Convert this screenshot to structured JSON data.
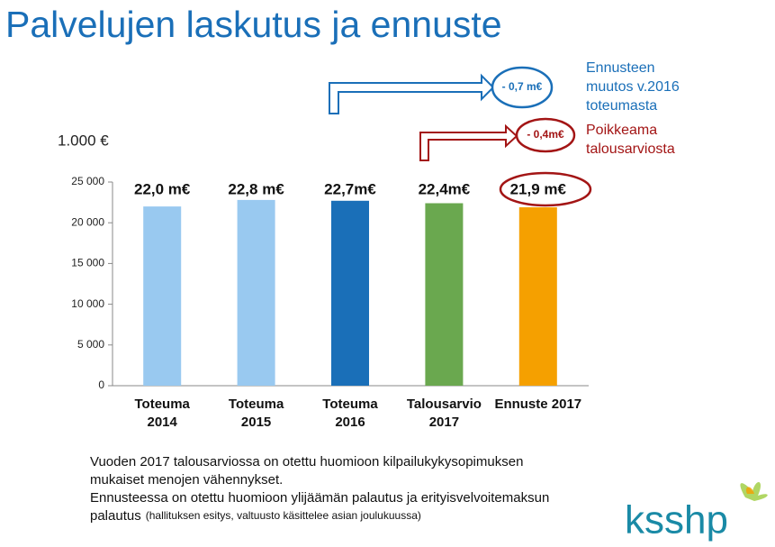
{
  "title": "Palvelujen laskutus ja ennuste",
  "chart_data": {
    "type": "bar",
    "unit_label": "1.000 €",
    "categories": [
      [
        "Toteuma",
        "2014"
      ],
      [
        "Toteuma",
        "2015"
      ],
      [
        "Toteuma",
        "2016"
      ],
      [
        "Talousarvio",
        "2017"
      ],
      [
        "Ennuste 2017"
      ]
    ],
    "values": [
      22000,
      22800,
      22700,
      22400,
      21900
    ],
    "value_labels": [
      "22,0 m€",
      "22,8 m€",
      "22,7m€",
      "22,4m€",
      "21,9 m€"
    ],
    "colors": [
      "#99c9f0",
      "#99c9f0",
      "#1a6fb8",
      "#6aa84f",
      "#f5a000"
    ],
    "ylim": [
      0,
      25000
    ],
    "yticks": [
      0,
      {
        "value": 5000,
        "label": "5 000"
      },
      {
        "value": 10000,
        "label": "10 000"
      },
      {
        "value": 15000,
        "label": "15 000"
      },
      {
        "value": 20000,
        "label": "20 000"
      },
      {
        "value": 25000,
        "label": "25 000"
      }
    ],
    "annotations": [
      {
        "label": "- 0,7 m€",
        "text": [
          "Ennusteen",
          "muutos v.2016",
          "toteumasta"
        ],
        "color": "#1a6fb8"
      },
      {
        "label": "- 0,4m€",
        "text": [
          "Poikkeama",
          "talousarviosta"
        ],
        "color": "#a31515"
      }
    ]
  },
  "footer": [
    "Vuoden 2017 talousarviossa on otettu huomioon kilpailukykysopimuksen",
    "mukaiset menojen vähennykset.",
    "Ennusteessa on otettu huomioon ylijäämän palautus ja erityisvelvoitemaksun",
    "palautus"
  ],
  "footer_note": "(hallituksen esitys, valtuusto käsittelee asian joulukuussa)",
  "logo": "ksshp"
}
